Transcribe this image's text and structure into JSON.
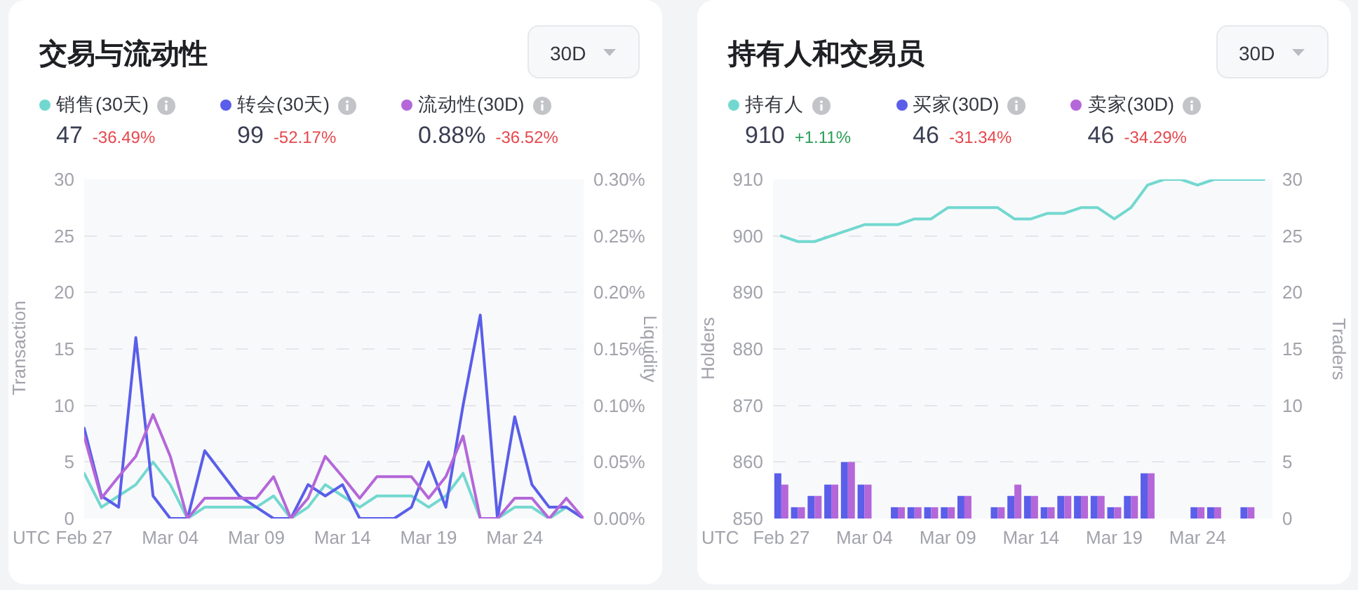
{
  "chart_data": [
    {
      "type": "line",
      "title": "交易与流动性",
      "xlabel": "UTC",
      "ylabel": "Transaction",
      "y2label": "Liquidity",
      "categories": [
        "Feb 27",
        null,
        null,
        null,
        null,
        "Mar 04",
        null,
        null,
        null,
        null,
        "Mar 09",
        null,
        null,
        null,
        null,
        "Mar 14",
        null,
        null,
        null,
        null,
        "Mar 19",
        null,
        null,
        null,
        null,
        "Mar 24",
        null,
        null,
        null,
        null
      ],
      "series": [
        {
          "name": "销售(30天)",
          "color": "#72d8cf",
          "values": [
            4,
            1,
            2,
            3,
            5,
            3,
            0,
            1,
            1,
            1,
            1,
            2,
            0,
            1,
            3,
            2,
            1,
            2,
            2,
            2,
            1,
            2,
            4,
            0,
            0,
            1,
            1,
            0,
            1,
            0
          ]
        },
        {
          "name": "转会(30天)",
          "color": "#5a5ee9",
          "values": [
            8,
            2,
            1,
            16,
            2,
            0,
            0,
            6,
            4,
            2,
            1,
            0,
            0,
            3,
            2,
            3,
            0,
            0,
            0,
            1,
            5,
            1,
            10,
            18,
            0,
            9,
            3,
            1,
            1,
            0
          ]
        },
        {
          "name": "流动性(30D)",
          "color": "#b467d9",
          "axis": "y2",
          "values": [
            0.073,
            0.018,
            0.037,
            0.055,
            0.092,
            0.055,
            0,
            0.018,
            0.018,
            0.018,
            0.018,
            0.037,
            0,
            0.018,
            0.055,
            0.037,
            0.018,
            0.037,
            0.037,
            0.037,
            0.018,
            0.037,
            0.073,
            0,
            0,
            0.018,
            0.018,
            0,
            0.018,
            0
          ]
        }
      ],
      "ylim": [
        0,
        30
      ],
      "yticks": [
        0,
        5,
        10,
        15,
        20,
        25,
        30
      ],
      "y2lim": [
        0,
        0.3
      ],
      "y2ticks": [
        {
          "value": 0,
          "label": "0.00%"
        },
        {
          "value": 0.05,
          "label": "0.05%"
        },
        {
          "value": 0.1,
          "label": "0.10%"
        },
        {
          "value": 0.15,
          "label": "0.15%"
        },
        {
          "value": 0.2,
          "label": "0.20%"
        },
        {
          "value": 0.25,
          "label": "0.25%"
        },
        {
          "value": 0.3,
          "label": "0.30%"
        }
      ],
      "grid": "y",
      "legend": "top left",
      "annotations": [
        "47",
        "-36.49%",
        "99",
        "-52.17%",
        "0.88%",
        "-36.52%",
        "30D"
      ]
    },
    {
      "type": "bar",
      "title": "持有人和交易员",
      "xlabel": "UTC",
      "ylabel": "Holders",
      "y2label": "Traders",
      "categories": [
        "Feb 27",
        null,
        null,
        null,
        null,
        "Mar 04",
        null,
        null,
        null,
        null,
        "Mar 09",
        null,
        null,
        null,
        null,
        "Mar 14",
        null,
        null,
        null,
        null,
        "Mar 19",
        null,
        null,
        null,
        null,
        "Mar 24",
        null,
        null,
        null,
        null
      ],
      "series": [
        {
          "name": "持有人",
          "type": "line",
          "color": "#72d8cf",
          "values": [
            900,
            899,
            899,
            900,
            901,
            902,
            902,
            902,
            903,
            903,
            905,
            905,
            905,
            905,
            903,
            903,
            904,
            904,
            905,
            905,
            903,
            905,
            909,
            910,
            910,
            909,
            910,
            910,
            910,
            910
          ]
        },
        {
          "name": "买家(30D)",
          "color": "#5a5ee9",
          "axis": "y2",
          "values": [
            4,
            1,
            2,
            3,
            5,
            3,
            0,
            1,
            1,
            1,
            1,
            2,
            0,
            1,
            2,
            2,
            1,
            2,
            2,
            2,
            1,
            2,
            4,
            0,
            0,
            1,
            1,
            0,
            1,
            0
          ]
        },
        {
          "name": "卖家(30D)",
          "color": "#b467d9",
          "axis": "y2",
          "values": [
            3,
            1,
            2,
            3,
            5,
            3,
            0,
            1,
            1,
            1,
            1,
            2,
            0,
            1,
            3,
            2,
            1,
            2,
            2,
            2,
            1,
            2,
            4,
            0,
            0,
            1,
            1,
            0,
            1,
            0
          ]
        }
      ],
      "ylim": [
        850,
        910
      ],
      "yticks": [
        850,
        860,
        870,
        880,
        890,
        900,
        910
      ],
      "y2lim": [
        0,
        30
      ],
      "y2ticks": [
        0,
        5,
        10,
        15,
        20,
        25,
        30
      ],
      "grid": "y",
      "legend": "top left",
      "annotations": [
        "910",
        "+1.11%",
        "46",
        "-31.34%",
        "46",
        "-34.29%",
        "30D"
      ]
    }
  ]
}
